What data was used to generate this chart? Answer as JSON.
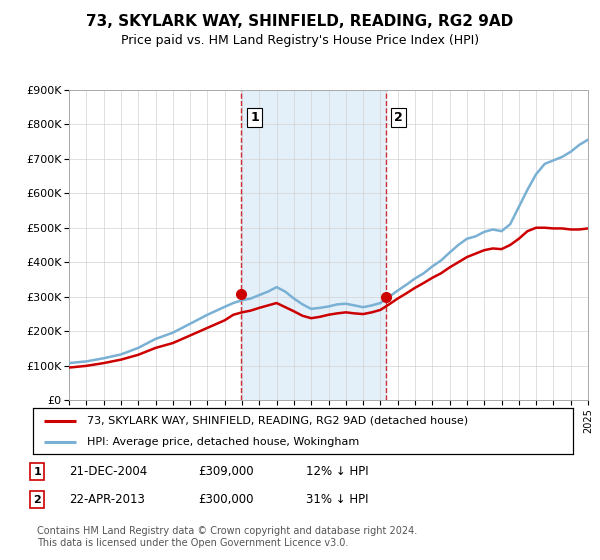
{
  "title": "73, SKYLARK WAY, SHINFIELD, READING, RG2 9AD",
  "subtitle": "Price paid vs. HM Land Registry's House Price Index (HPI)",
  "ylim": [
    0,
    900000
  ],
  "yticks": [
    0,
    100000,
    200000,
    300000,
    400000,
    500000,
    600000,
    700000,
    800000,
    900000
  ],
  "purchase1": {
    "price": 309000,
    "year": 2004.97
  },
  "purchase2": {
    "price": 300000,
    "year": 2013.31
  },
  "legend_line1": "73, SKYLARK WAY, SHINFIELD, READING, RG2 9AD (detached house)",
  "legend_line2": "HPI: Average price, detached house, Wokingham",
  "footer": "Contains HM Land Registry data © Crown copyright and database right 2024.\nThis data is licensed under the Open Government Licence v3.0.",
  "line_red": "#cc0000",
  "line_blue": "#7ab0d4",
  "bg_blue": "#d8eaf7",
  "hpi_years": [
    1995,
    1996,
    1997,
    1998,
    1999,
    2000,
    2001,
    2002,
    2003,
    2004,
    2004.5,
    2005,
    2005.5,
    2006,
    2006.5,
    2007,
    2007.5,
    2008,
    2008.5,
    2009,
    2009.5,
    2010,
    2010.5,
    2011,
    2011.5,
    2012,
    2012.5,
    2013,
    2013.5,
    2014,
    2014.5,
    2015,
    2015.5,
    2016,
    2016.5,
    2017,
    2017.5,
    2018,
    2018.5,
    2019,
    2019.5,
    2020,
    2020.5,
    2021,
    2021.5,
    2022,
    2022.5,
    2023,
    2023.5,
    2024,
    2024.5,
    2025
  ],
  "hpi_values": [
    108000,
    113000,
    122000,
    133000,
    152000,
    178000,
    196000,
    222000,
    248000,
    271000,
    282000,
    290000,
    295000,
    305000,
    315000,
    328000,
    315000,
    295000,
    278000,
    265000,
    268000,
    272000,
    278000,
    280000,
    275000,
    270000,
    275000,
    282000,
    300000,
    318000,
    335000,
    353000,
    368000,
    388000,
    405000,
    428000,
    450000,
    468000,
    475000,
    488000,
    495000,
    490000,
    510000,
    560000,
    610000,
    655000,
    685000,
    695000,
    705000,
    720000,
    740000,
    755000
  ],
  "price_years": [
    1995,
    1996,
    1997,
    1998,
    1999,
    2000,
    2001,
    2002,
    2003,
    2004,
    2004.5,
    2005,
    2005.5,
    2006,
    2006.5,
    2007,
    2007.5,
    2008,
    2008.5,
    2009,
    2009.5,
    2010,
    2010.5,
    2011,
    2011.5,
    2012,
    2012.5,
    2013,
    2013.5,
    2014,
    2014.5,
    2015,
    2015.5,
    2016,
    2016.5,
    2017,
    2017.5,
    2018,
    2018.5,
    2019,
    2019.5,
    2020,
    2020.5,
    2021,
    2021.5,
    2022,
    2022.5,
    2023,
    2023.5,
    2024,
    2024.5,
    2025
  ],
  "price_values": [
    95000,
    100000,
    108000,
    118000,
    132000,
    152000,
    166000,
    188000,
    210000,
    232000,
    248000,
    255000,
    260000,
    268000,
    275000,
    282000,
    270000,
    258000,
    245000,
    238000,
    242000,
    248000,
    252000,
    255000,
    252000,
    250000,
    255000,
    262000,
    278000,
    295000,
    310000,
    326000,
    340000,
    355000,
    368000,
    385000,
    400000,
    415000,
    425000,
    435000,
    440000,
    438000,
    450000,
    468000,
    490000,
    500000,
    500000,
    498000,
    498000,
    495000,
    495000,
    498000
  ]
}
